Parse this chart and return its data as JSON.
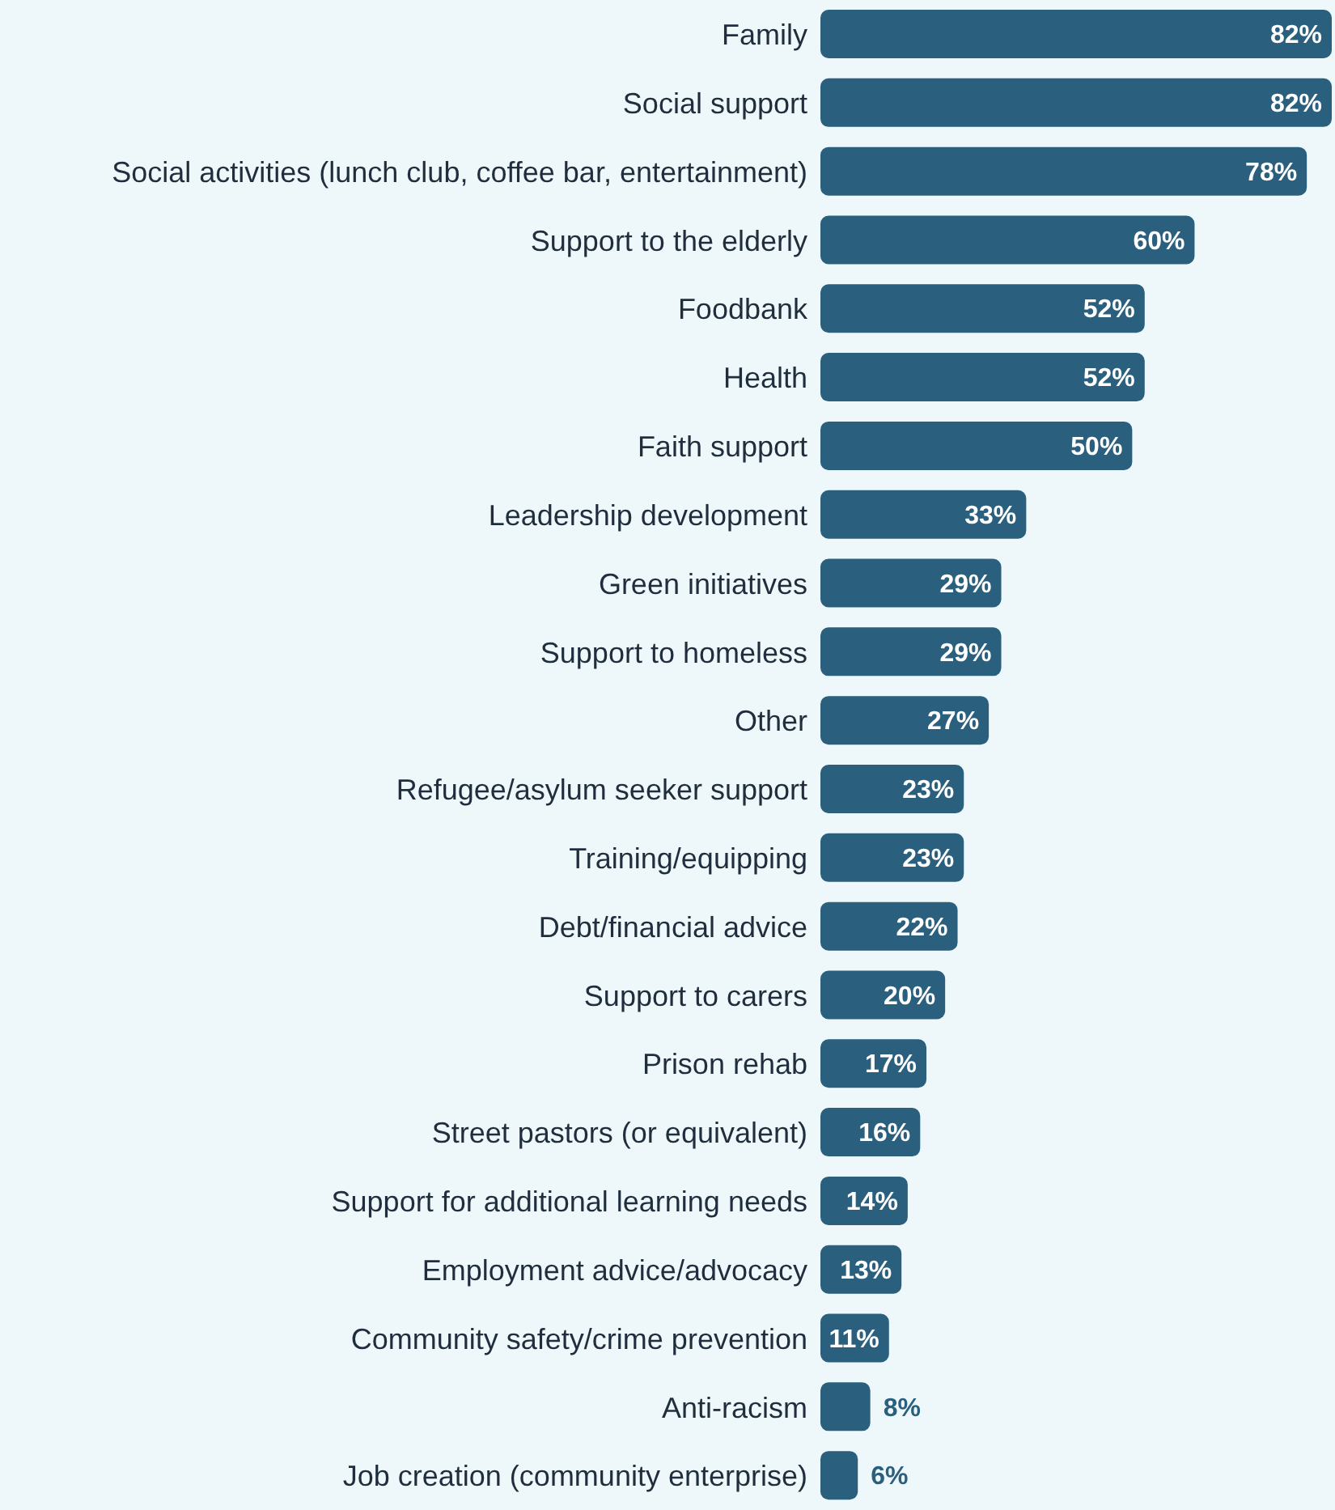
{
  "chart_data": {
    "type": "bar",
    "orientation": "horizontal",
    "color": "#2a5f7e",
    "tick_labels": "y",
    "categories": [
      "Family",
      "Social support",
      "Social activities (lunch club, coffee bar, entertainment)",
      "Support to the elderly",
      "Foodbank",
      "Health",
      "Faith support",
      "Leadership development",
      "Green initiatives",
      "Support to homeless",
      "Other",
      "Refugee/asylum seeker support",
      "Training/equipping",
      "Debt/financial advice",
      "Support to carers",
      "Prison rehab",
      "Street pastors (or equivalent)",
      "Support for additional learning needs",
      "Employment advice/advocacy",
      "Community safety/crime prevention",
      "Anti-racism",
      "Job creation (community enterprise)"
    ],
    "values": [
      82,
      82,
      78,
      60,
      52,
      52,
      50,
      33,
      29,
      29,
      27,
      23,
      23,
      22,
      20,
      17,
      16,
      14,
      13,
      11,
      8,
      6
    ],
    "value_labels": [
      "82%",
      "82%",
      "78%",
      "60%",
      "52%",
      "52%",
      "50%",
      "33%",
      "29%",
      "29%",
      "27%",
      "23%",
      "23%",
      "22%",
      "20%",
      "17%",
      "16%",
      "14%",
      "13%",
      "11%",
      "8%",
      "6%"
    ]
  }
}
